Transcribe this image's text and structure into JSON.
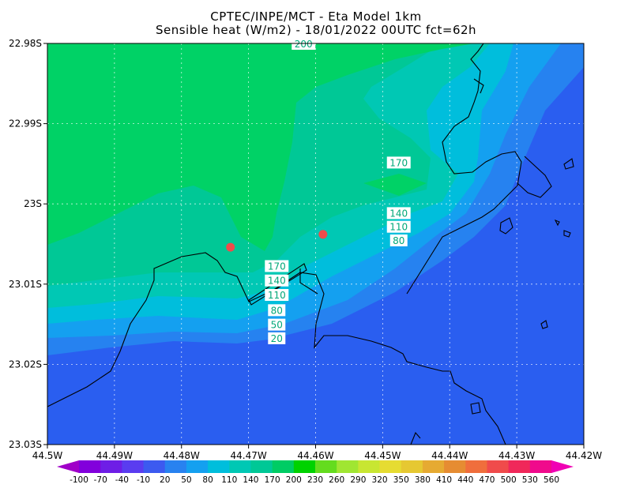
{
  "header": {
    "title": "CPTEC/INPE/MCT -  Eta Model 1km",
    "subtitle": "Sensible heat (W/m2) - 18/01/2022 00UTC fct=62h"
  },
  "chart_data": {
    "type": "heatmap",
    "variable": "Sensible heat",
    "units": "W/m2",
    "xlim": [
      -44.5,
      -44.42
    ],
    "ylim": [
      -23.03,
      -22.98
    ],
    "x_ticks": [
      {
        "value": -44.5,
        "label": "44.5W"
      },
      {
        "value": -44.49,
        "label": "44.49W"
      },
      {
        "value": -44.48,
        "label": "44.48W"
      },
      {
        "value": -44.47,
        "label": "44.47W"
      },
      {
        "value": -44.46,
        "label": "44.46W"
      },
      {
        "value": -44.45,
        "label": "44.45W"
      },
      {
        "value": -44.44,
        "label": "44.44W"
      },
      {
        "value": -44.43,
        "label": "44.43W"
      },
      {
        "value": -44.42,
        "label": "44.42W"
      }
    ],
    "y_ticks": [
      {
        "value": -22.98,
        "label": "22.98S"
      },
      {
        "value": -22.99,
        "label": "22.99S"
      },
      {
        "value": -23.0,
        "label": "23S"
      },
      {
        "value": -23.01,
        "label": "23.01S"
      },
      {
        "value": -23.02,
        "label": "23.02S"
      },
      {
        "value": -23.03,
        "label": "23.03S"
      }
    ],
    "grid": true,
    "colorbar": {
      "levels": [
        -100,
        -70,
        -40,
        -10,
        20,
        50,
        80,
        110,
        140,
        170,
        200,
        230,
        260,
        290,
        320,
        350,
        380,
        410,
        440,
        470,
        500,
        530,
        560
      ],
      "labels": [
        "-100",
        "-70",
        "-40",
        "-10",
        "20",
        "50",
        "80",
        "110",
        "140",
        "170",
        "200",
        "230",
        "260",
        "290",
        "320",
        "350",
        "380",
        "410",
        "440",
        "470",
        "500",
        "530",
        "560"
      ],
      "colors": [
        "#a000c8",
        "#8200dc",
        "#6e1ee6",
        "#5a3cf0",
        "#3c5af0",
        "#2882f0",
        "#14a0f0",
        "#00bedc",
        "#00c8b4",
        "#00c896",
        "#00cc64",
        "#00d200",
        "#64dc1e",
        "#a0e632",
        "#c8e632",
        "#e6dc32",
        "#e6c832",
        "#e6aa32",
        "#e68c32",
        "#f06e3c",
        "#f04b4b",
        "#f0285a",
        "#f00a8c",
        "#f000b4"
      ]
    },
    "contour_labels": [
      {
        "text": "200",
        "lon": -44.4618,
        "lat": -22.9801
      },
      {
        "text": "170",
        "lon": -44.4476,
        "lat": -22.9949
      },
      {
        "text": "140",
        "lon": -44.4476,
        "lat": -23.0012
      },
      {
        "text": "110",
        "lon": -44.4476,
        "lat": -23.0029
      },
      {
        "text": "80",
        "lon": -44.4476,
        "lat": -23.0046
      },
      {
        "text": "170",
        "lon": -44.4658,
        "lat": -23.0078
      },
      {
        "text": "140",
        "lon": -44.4658,
        "lat": -23.0096
      },
      {
        "text": "110",
        "lon": -44.4658,
        "lat": -23.0114
      },
      {
        "text": "80",
        "lon": -44.4658,
        "lat": -23.0133
      },
      {
        "text": "50",
        "lon": -44.4658,
        "lat": -23.0151
      },
      {
        "text": "20",
        "lon": -44.4658,
        "lat": -23.0168
      }
    ],
    "markers": [
      {
        "lon": -44.4727,
        "lat": -23.0054,
        "color": "#f04b4b"
      },
      {
        "lon": -44.4589,
        "lat": -23.0038,
        "color": "#f04b4b"
      }
    ]
  }
}
